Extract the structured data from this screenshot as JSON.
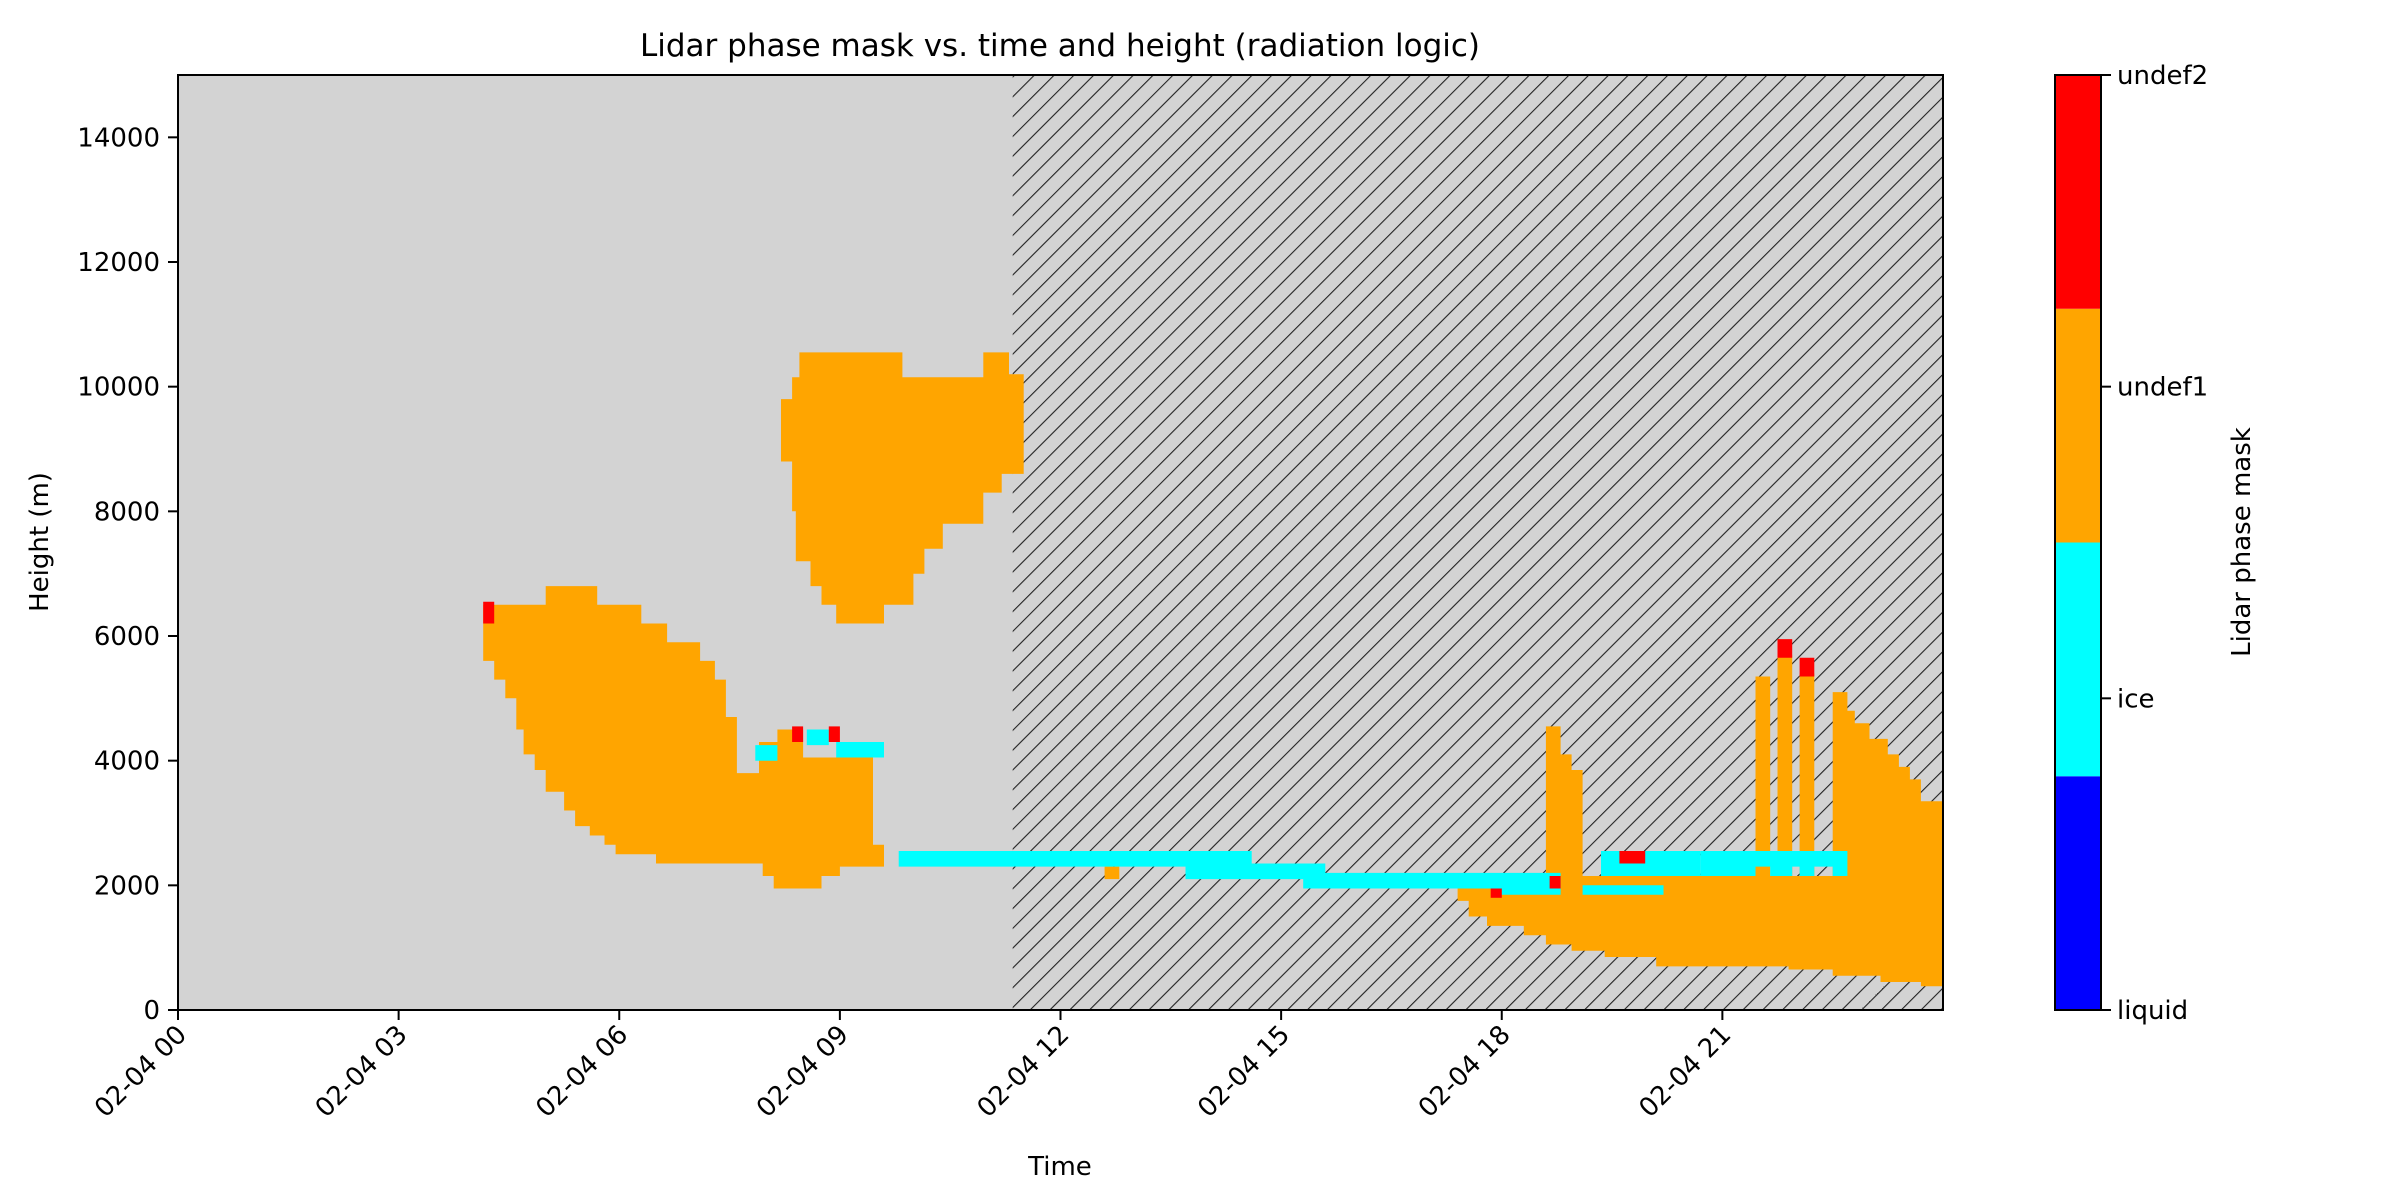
{
  "chart_data": {
    "type": "heatmap",
    "title": "Lidar phase mask vs. time and height (radiation logic)",
    "xlabel": "Time",
    "ylabel": "Height (m)",
    "x_unit": "hours",
    "x_range": [
      0,
      24
    ],
    "ylim": [
      0,
      15000
    ],
    "x_ticks": [
      {
        "value": 0,
        "label": "02-04 00"
      },
      {
        "value": 3,
        "label": "02-04 03"
      },
      {
        "value": 6,
        "label": "02-04 06"
      },
      {
        "value": 9,
        "label": "02-04 09"
      },
      {
        "value": 12,
        "label": "02-04 12"
      },
      {
        "value": 15,
        "label": "02-04 15"
      },
      {
        "value": 18,
        "label": "02-04 18"
      },
      {
        "value": 21,
        "label": "02-04 21"
      }
    ],
    "y_ticks": [
      {
        "value": 0,
        "label": "0"
      },
      {
        "value": 2000,
        "label": "2000"
      },
      {
        "value": 4000,
        "label": "4000"
      },
      {
        "value": 6000,
        "label": "6000"
      },
      {
        "value": 8000,
        "label": "8000"
      },
      {
        "value": 10000,
        "label": "10000"
      },
      {
        "value": 12000,
        "label": "12000"
      },
      {
        "value": 14000,
        "label": "14000"
      }
    ],
    "background_color": "#d3d3d3",
    "hatched_region": {
      "x_start": 11.35,
      "x_end": 24
    },
    "categories": [
      {
        "value": 0,
        "label": "liquid",
        "color": "#0000ff"
      },
      {
        "value": 1,
        "label": "ice",
        "color": "#00ffff"
      },
      {
        "value": 2,
        "label": "undef1",
        "color": "#ffa500"
      },
      {
        "value": 3,
        "label": "undef2",
        "color": "#ff0000"
      }
    ],
    "colorbar_label": "Lidar phase mask",
    "regions": [
      {
        "category": 2,
        "polygon": [
          [
            4.15,
            6500
          ],
          [
            5.0,
            6500
          ],
          [
            5.0,
            6800
          ],
          [
            5.7,
            6800
          ],
          [
            5.7,
            6500
          ],
          [
            6.3,
            6500
          ],
          [
            6.3,
            6200
          ],
          [
            6.65,
            6200
          ],
          [
            6.65,
            5900
          ],
          [
            7.1,
            5900
          ],
          [
            7.1,
            5600
          ],
          [
            7.3,
            5600
          ],
          [
            7.3,
            5300
          ],
          [
            7.45,
            5300
          ],
          [
            7.45,
            4700
          ],
          [
            7.6,
            4700
          ],
          [
            7.6,
            3800
          ],
          [
            7.9,
            3800
          ],
          [
            7.9,
            4300
          ],
          [
            8.15,
            4300
          ],
          [
            8.15,
            4500
          ],
          [
            8.5,
            4500
          ],
          [
            8.5,
            4050
          ],
          [
            9.45,
            4050
          ],
          [
            9.45,
            2650
          ],
          [
            9.6,
            2650
          ],
          [
            9.6,
            2300
          ],
          [
            9.0,
            2300
          ],
          [
            9.0,
            2150
          ],
          [
            8.75,
            2150
          ],
          [
            8.75,
            1950
          ],
          [
            8.1,
            1950
          ],
          [
            8.1,
            2150
          ],
          [
            7.95,
            2150
          ],
          [
            7.95,
            2350
          ],
          [
            6.5,
            2350
          ],
          [
            6.5,
            2500
          ],
          [
            5.95,
            2500
          ],
          [
            5.95,
            2650
          ],
          [
            5.8,
            2650
          ],
          [
            5.8,
            2800
          ],
          [
            5.6,
            2800
          ],
          [
            5.6,
            2950
          ],
          [
            5.4,
            2950
          ],
          [
            5.4,
            3200
          ],
          [
            5.25,
            3200
          ],
          [
            5.25,
            3500
          ],
          [
            5.0,
            3500
          ],
          [
            5.0,
            3850
          ],
          [
            4.85,
            3850
          ],
          [
            4.85,
            4100
          ],
          [
            4.7,
            4100
          ],
          [
            4.7,
            4500
          ],
          [
            4.6,
            4500
          ],
          [
            4.6,
            5000
          ],
          [
            4.45,
            5000
          ],
          [
            4.45,
            5300
          ],
          [
            4.3,
            5300
          ],
          [
            4.3,
            5600
          ],
          [
            4.15,
            5600
          ]
        ]
      },
      {
        "category": 2,
        "polygon": [
          [
            8.2,
            9500
          ],
          [
            8.2,
            8800
          ],
          [
            8.35,
            8800
          ],
          [
            8.35,
            8000
          ],
          [
            8.4,
            8000
          ],
          [
            8.4,
            7200
          ],
          [
            8.6,
            7200
          ],
          [
            8.6,
            6800
          ],
          [
            8.75,
            6800
          ],
          [
            8.75,
            6500
          ],
          [
            8.95,
            6500
          ],
          [
            8.95,
            6200
          ],
          [
            9.6,
            6200
          ],
          [
            9.6,
            6500
          ],
          [
            10.0,
            6500
          ],
          [
            10.0,
            7000
          ],
          [
            10.15,
            7000
          ],
          [
            10.15,
            7400
          ],
          [
            10.4,
            7400
          ],
          [
            10.4,
            7800
          ],
          [
            10.95,
            7800
          ],
          [
            10.95,
            8300
          ],
          [
            11.2,
            8300
          ],
          [
            11.2,
            8600
          ],
          [
            11.5,
            8600
          ],
          [
            11.5,
            10200
          ],
          [
            11.3,
            10200
          ],
          [
            11.3,
            10550
          ],
          [
            10.95,
            10550
          ],
          [
            10.95,
            10150
          ],
          [
            9.85,
            10150
          ],
          [
            9.85,
            10550
          ],
          [
            8.45,
            10550
          ],
          [
            8.45,
            10150
          ],
          [
            8.35,
            10150
          ],
          [
            8.35,
            9800
          ],
          [
            8.2,
            9800
          ]
        ]
      },
      {
        "category": 2,
        "polygon": [
          [
            17.4,
            1950
          ],
          [
            17.4,
            1750
          ],
          [
            17.55,
            1750
          ],
          [
            17.55,
            1500
          ],
          [
            17.8,
            1500
          ],
          [
            17.8,
            1350
          ],
          [
            18.3,
            1350
          ],
          [
            18.3,
            1200
          ],
          [
            18.6,
            1200
          ],
          [
            18.6,
            1050
          ],
          [
            18.95,
            1050
          ],
          [
            18.95,
            950
          ],
          [
            19.4,
            950
          ],
          [
            19.4,
            850
          ],
          [
            20.1,
            850
          ],
          [
            20.1,
            700
          ],
          [
            21.9,
            700
          ],
          [
            21.9,
            650
          ],
          [
            22.5,
            650
          ],
          [
            22.5,
            550
          ],
          [
            23.15,
            550
          ],
          [
            23.15,
            450
          ],
          [
            23.7,
            450
          ],
          [
            23.7,
            380
          ],
          [
            24.0,
            380
          ],
          [
            24.0,
            3350
          ],
          [
            23.7,
            3350
          ],
          [
            23.7,
            3700
          ],
          [
            23.55,
            3700
          ],
          [
            23.55,
            3900
          ],
          [
            23.4,
            3900
          ],
          [
            23.4,
            4100
          ],
          [
            23.25,
            4100
          ],
          [
            23.25,
            4350
          ],
          [
            23.0,
            4350
          ],
          [
            23.0,
            4600
          ],
          [
            22.8,
            4600
          ],
          [
            22.8,
            4800
          ],
          [
            22.7,
            4800
          ],
          [
            22.7,
            5100
          ],
          [
            22.5,
            5100
          ],
          [
            22.5,
            2150
          ],
          [
            17.4,
            2150
          ]
        ]
      },
      {
        "category": 2,
        "polygon": [
          [
            18.6,
            2150
          ],
          [
            18.6,
            4550
          ],
          [
            18.8,
            4550
          ],
          [
            18.8,
            4100
          ],
          [
            18.95,
            4100
          ],
          [
            18.95,
            3850
          ],
          [
            19.1,
            3850
          ],
          [
            19.1,
            2150
          ]
        ]
      },
      {
        "category": 2,
        "polygon": [
          [
            21.45,
            2150
          ],
          [
            21.45,
            5350
          ],
          [
            21.65,
            5350
          ],
          [
            21.65,
            2150
          ]
        ]
      },
      {
        "category": 2,
        "polygon": [
          [
            21.75,
            2150
          ],
          [
            21.75,
            5700
          ],
          [
            21.95,
            5700
          ],
          [
            21.95,
            2150
          ]
        ]
      },
      {
        "category": 2,
        "polygon": [
          [
            22.05,
            2150
          ],
          [
            22.05,
            5400
          ],
          [
            22.25,
            5400
          ],
          [
            22.25,
            2150
          ]
        ]
      },
      {
        "category": 2,
        "polygon": [
          [
            12.6,
            2100
          ],
          [
            12.6,
            2300
          ],
          [
            12.8,
            2300
          ],
          [
            12.8,
            2100
          ]
        ]
      },
      {
        "category": 1,
        "polygon": [
          [
            7.85,
            4000
          ],
          [
            7.85,
            4250
          ],
          [
            8.15,
            4250
          ],
          [
            8.15,
            4000
          ]
        ]
      },
      {
        "category": 1,
        "polygon": [
          [
            8.55,
            4250
          ],
          [
            8.55,
            4500
          ],
          [
            8.85,
            4500
          ],
          [
            8.85,
            4250
          ]
        ]
      },
      {
        "category": 1,
        "polygon": [
          [
            8.95,
            4050
          ],
          [
            8.95,
            4300
          ],
          [
            9.6,
            4300
          ],
          [
            9.6,
            4050
          ]
        ]
      },
      {
        "category": 1,
        "polygon": [
          [
            9.8,
            2300
          ],
          [
            9.8,
            2550
          ],
          [
            14.6,
            2550
          ],
          [
            14.6,
            2350
          ],
          [
            15.6,
            2350
          ],
          [
            15.6,
            2200
          ],
          [
            18.8,
            2200
          ],
          [
            18.8,
            1850
          ],
          [
            17.9,
            1850
          ],
          [
            17.9,
            1950
          ],
          [
            17.4,
            1950
          ],
          [
            17.4,
            1950
          ],
          [
            15.3,
            1950
          ],
          [
            15.3,
            2100
          ],
          [
            13.7,
            2100
          ],
          [
            13.7,
            2300
          ],
          [
            9.8,
            2300
          ]
        ]
      },
      {
        "category": 1,
        "polygon": [
          [
            19.35,
            2350
          ],
          [
            19.35,
            2550
          ],
          [
            20.7,
            2550
          ],
          [
            20.7,
            2150
          ],
          [
            19.35,
            2150
          ]
        ]
      },
      {
        "category": 1,
        "polygon": [
          [
            19.1,
            1850
          ],
          [
            19.1,
            2000
          ],
          [
            20.2,
            2000
          ],
          [
            20.2,
            1850
          ]
        ]
      },
      {
        "category": 1,
        "polygon": [
          [
            20.7,
            2150
          ],
          [
            20.7,
            2550
          ],
          [
            22.7,
            2550
          ],
          [
            22.7,
            2150
          ],
          [
            22.5,
            2150
          ],
          [
            22.5,
            2300
          ],
          [
            22.25,
            2300
          ],
          [
            22.25,
            2150
          ],
          [
            22.05,
            2150
          ],
          [
            22.05,
            2300
          ],
          [
            21.95,
            2300
          ],
          [
            21.95,
            2150
          ],
          [
            21.65,
            2150
          ],
          [
            21.65,
            2300
          ],
          [
            21.45,
            2300
          ],
          [
            21.45,
            2150
          ]
        ]
      },
      {
        "category": 3,
        "polygon": [
          [
            4.15,
            6200
          ],
          [
            4.15,
            6550
          ],
          [
            4.3,
            6550
          ],
          [
            4.3,
            6200
          ]
        ]
      },
      {
        "category": 3,
        "polygon": [
          [
            8.35,
            4300
          ],
          [
            8.35,
            4550
          ],
          [
            8.5,
            4550
          ],
          [
            8.5,
            4300
          ]
        ]
      },
      {
        "category": 3,
        "polygon": [
          [
            8.85,
            4300
          ],
          [
            8.85,
            4550
          ],
          [
            9.0,
            4550
          ],
          [
            9.0,
            4300
          ]
        ]
      },
      {
        "category": 3,
        "polygon": [
          [
            17.85,
            1800
          ],
          [
            17.85,
            1950
          ],
          [
            18.0,
            1950
          ],
          [
            18.0,
            1800
          ]
        ]
      },
      {
        "category": 3,
        "polygon": [
          [
            18.65,
            1950
          ],
          [
            18.65,
            2150
          ],
          [
            18.8,
            2150
          ],
          [
            18.8,
            1950
          ]
        ]
      },
      {
        "category": 3,
        "polygon": [
          [
            19.6,
            2350
          ],
          [
            19.6,
            2550
          ],
          [
            19.95,
            2550
          ],
          [
            19.95,
            2350
          ]
        ]
      },
      {
        "category": 3,
        "polygon": [
          [
            21.75,
            5650
          ],
          [
            21.75,
            5950
          ],
          [
            21.95,
            5950
          ],
          [
            21.95,
            5650
          ]
        ]
      },
      {
        "category": 3,
        "polygon": [
          [
            22.05,
            5350
          ],
          [
            22.05,
            5650
          ],
          [
            22.25,
            5650
          ],
          [
            22.25,
            5350
          ]
        ]
      }
    ]
  }
}
